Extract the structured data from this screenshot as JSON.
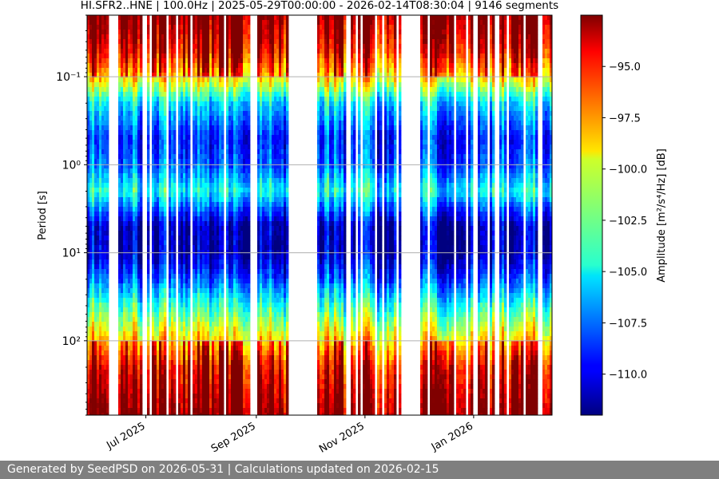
{
  "footer": {
    "text": "Generated by SeedPSD on 2026-05-31 | Calculations updated on 2026-02-15"
  },
  "chart_data": {
    "type": "heatmap",
    "title": "HI.SFR2..HNE | 100.0Hz | 2025-05-29T00:00:00 - 2026-02-14T08:30:04 | 9146 segments",
    "xlabel": "",
    "ylabel": "Period [s]",
    "colorbar_label": "Amplitude [m²/s⁴/Hz] [dB]",
    "colormap": "jet",
    "x_range": [
      "2025-05-29",
      "2026-02-14"
    ],
    "x_ticks": [
      {
        "date": "2025-07-01",
        "label": "Jul 2025"
      },
      {
        "date": "2025-09-01",
        "label": "Sep 2025"
      },
      {
        "date": "2025-11-01",
        "label": "Nov 2025"
      },
      {
        "date": "2026-01-01",
        "label": "Jan 2026"
      }
    ],
    "y_scale": "log",
    "y_inverted": true,
    "y_range": [
      0.02,
      700
    ],
    "y_ticks": [
      {
        "value": 0.1,
        "label": "10⁻¹"
      },
      {
        "value": 1,
        "label": "10⁰"
      },
      {
        "value": 10,
        "label": "10¹"
      },
      {
        "value": 100,
        "label": "10²"
      }
    ],
    "grid": "horizontal",
    "color_range": [
      -112,
      -92.5
    ],
    "colorbar_ticks": [
      {
        "value": -95.0,
        "label": "−95.0"
      },
      {
        "value": -97.5,
        "label": "−97.5"
      },
      {
        "value": -100.0,
        "label": "−100.0"
      },
      {
        "value": -102.5,
        "label": "−102.5"
      },
      {
        "value": -105.0,
        "label": "−105.0"
      },
      {
        "value": -107.5,
        "label": "−107.5"
      },
      {
        "value": -110.0,
        "label": "−110.0"
      }
    ],
    "data_gaps": [
      [
        "2025-08-28",
        "2025-09-02"
      ],
      [
        "2025-09-19",
        "2025-10-05"
      ],
      [
        "2025-11-21",
        "2025-12-02"
      ]
    ],
    "spectrum_profile": [
      {
        "period": 0.02,
        "dB": -93
      },
      {
        "period": 0.05,
        "dB": -95.5
      },
      {
        "period": 0.1,
        "dB": -99
      },
      {
        "period": 0.2,
        "dB": -105.5
      },
      {
        "period": 0.5,
        "dB": -109
      },
      {
        "period": 1,
        "dB": -108
      },
      {
        "period": 2,
        "dB": -104.5
      },
      {
        "period": 3,
        "dB": -107.5
      },
      {
        "period": 5,
        "dB": -111
      },
      {
        "period": 10,
        "dB": -111
      },
      {
        "period": 20,
        "dB": -108
      },
      {
        "period": 40,
        "dB": -104
      },
      {
        "period": 100,
        "dB": -99
      },
      {
        "period": 200,
        "dB": -95.5
      },
      {
        "period": 700,
        "dB": -93
      }
    ]
  }
}
